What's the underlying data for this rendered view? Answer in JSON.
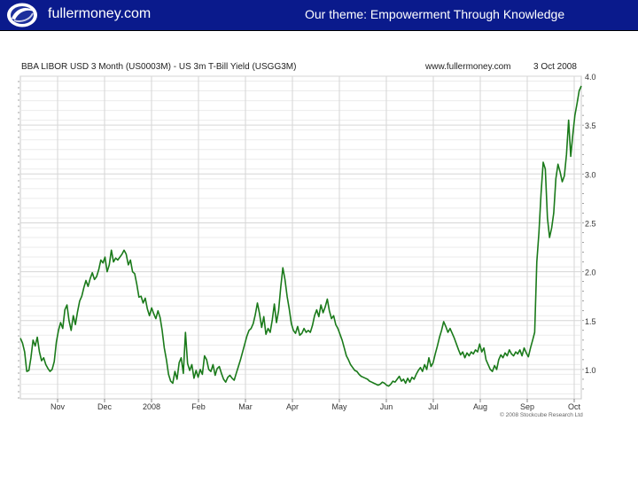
{
  "header": {
    "site_name": "fullermoney.com",
    "theme": "Our theme: Empowerment Through Knowledge",
    "logo_icon": "globe-swirl-icon",
    "bg_color": "#0a1a8c",
    "text_color": "#ffffff"
  },
  "chart_data": {
    "type": "line",
    "title": "BBA LIBOR USD 3 Month (US0003M) - US 3m T-Bill Yield (USGG3M)",
    "source": "www.fullermoney.com",
    "date": "3 Oct 2008",
    "copyright": "© 2008 Stockcube Research Ltd",
    "x_tick_labels": [
      "Nov",
      "Dec",
      "2008",
      "Feb",
      "Mar",
      "Apr",
      "May",
      "Jun",
      "Jul",
      "Aug",
      "Sep",
      "Oct"
    ],
    "y_tick_labels": [
      "1.0",
      "1.5",
      "2.0",
      "2.5",
      "3.0",
      "3.5",
      "4.0"
    ],
    "ylim": [
      0.7,
      4.0
    ],
    "grid": true,
    "line_color": "#1a7a1a",
    "series": [
      {
        "values": [
          1.32,
          1.27,
          1.18,
          0.98,
          0.99,
          1.12,
          1.3,
          1.24,
          1.33,
          1.18,
          1.09,
          1.12,
          1.05,
          1.01,
          0.98,
          1.0,
          1.08,
          1.28,
          1.4,
          1.48,
          1.42,
          1.61,
          1.66,
          1.5,
          1.4,
          1.55,
          1.46,
          1.59,
          1.7,
          1.75,
          1.84,
          1.91,
          1.85,
          1.93,
          1.99,
          1.92,
          1.95,
          2.02,
          2.12,
          2.09,
          2.15,
          2.0,
          2.07,
          2.22,
          2.1,
          2.14,
          2.12,
          2.15,
          2.18,
          2.22,
          2.18,
          2.07,
          2.12,
          2.0,
          1.98,
          1.87,
          1.74,
          1.75,
          1.68,
          1.73,
          1.62,
          1.55,
          1.63,
          1.57,
          1.52,
          1.6,
          1.53,
          1.4,
          1.22,
          1.1,
          0.95,
          0.88,
          0.86,
          0.98,
          0.9,
          1.07,
          1.12,
          0.96,
          1.38,
          1.06,
          0.99,
          1.05,
          0.91,
          0.99,
          0.92,
          1.0,
          0.95,
          1.14,
          1.1,
          1.0,
          0.98,
          1.05,
          0.94,
          1.01,
          1.03,
          0.96,
          0.9,
          0.87,
          0.92,
          0.94,
          0.91,
          0.89,
          0.96,
          1.03,
          1.1,
          1.18,
          1.26,
          1.34,
          1.4,
          1.42,
          1.47,
          1.56,
          1.68,
          1.57,
          1.43,
          1.54,
          1.36,
          1.42,
          1.38,
          1.51,
          1.67,
          1.48,
          1.6,
          1.84,
          2.04,
          1.92,
          1.75,
          1.62,
          1.47,
          1.4,
          1.37,
          1.44,
          1.35,
          1.37,
          1.42,
          1.38,
          1.4,
          1.38,
          1.45,
          1.55,
          1.61,
          1.54,
          1.66,
          1.58,
          1.64,
          1.72,
          1.6,
          1.52,
          1.55,
          1.46,
          1.42,
          1.36,
          1.3,
          1.22,
          1.14,
          1.1,
          1.05,
          1.02,
          0.99,
          0.98,
          0.95,
          0.93,
          0.92,
          0.91,
          0.9,
          0.88,
          0.87,
          0.86,
          0.85,
          0.84,
          0.85,
          0.87,
          0.86,
          0.84,
          0.83,
          0.85,
          0.88,
          0.87,
          0.9,
          0.93,
          0.88,
          0.9,
          0.86,
          0.91,
          0.87,
          0.92,
          0.9,
          0.95,
          0.99,
          1.02,
          0.98,
          1.05,
          1.0,
          1.12,
          1.03,
          1.07,
          1.16,
          1.24,
          1.33,
          1.4,
          1.49,
          1.44,
          1.38,
          1.42,
          1.37,
          1.32,
          1.26,
          1.2,
          1.15,
          1.18,
          1.12,
          1.17,
          1.14,
          1.18,
          1.16,
          1.2,
          1.18,
          1.26,
          1.18,
          1.22,
          1.1,
          1.05,
          1.0,
          0.98,
          1.04,
          1.0,
          1.1,
          1.15,
          1.12,
          1.17,
          1.14,
          1.2,
          1.16,
          1.14,
          1.18,
          1.16,
          1.2,
          1.14,
          1.22,
          1.17,
          1.13,
          1.22,
          1.3,
          1.38,
          2.1,
          2.4,
          2.8,
          3.12,
          3.05,
          2.55,
          2.35,
          2.45,
          2.6,
          2.95,
          3.1,
          3.02,
          2.92,
          2.98,
          3.2,
          3.55,
          3.18,
          3.4,
          3.6,
          3.72,
          3.85,
          3.9
        ]
      }
    ]
  }
}
